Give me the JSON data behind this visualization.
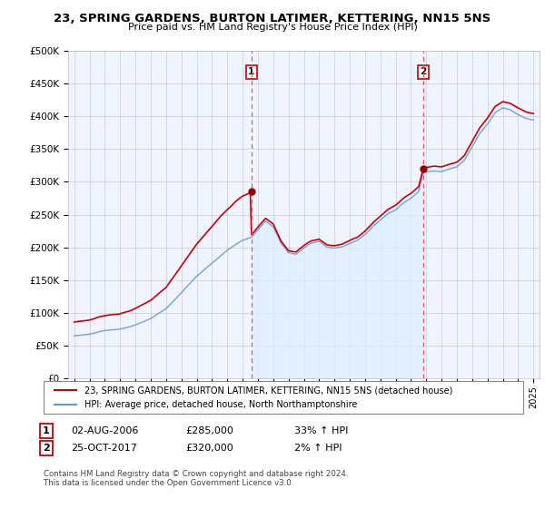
{
  "title": "23, SPRING GARDENS, BURTON LATIMER, KETTERING, NN15 5NS",
  "subtitle": "Price paid vs. HM Land Registry's House Price Index (HPI)",
  "legend_line1": "23, SPRING GARDENS, BURTON LATIMER, KETTERING, NN15 5NS (detached house)",
  "legend_line2": "HPI: Average price, detached house, North Northamptonshire",
  "annotation1_label": "1",
  "annotation1_date": "02-AUG-2006",
  "annotation1_price": "£285,000",
  "annotation1_hpi": "33% ↑ HPI",
  "annotation2_label": "2",
  "annotation2_date": "25-OCT-2017",
  "annotation2_price": "£320,000",
  "annotation2_hpi": "2% ↑ HPI",
  "footer": "Contains HM Land Registry data © Crown copyright and database right 2024.\nThis data is licensed under the Open Government Licence v3.0.",
  "sale_color": "#cc0000",
  "hpi_color": "#6699cc",
  "hpi_fill_color": "#ddeeff",
  "background_color": "#ffffff",
  "sale1_year": 2006.58,
  "sale1_value": 285000,
  "sale2_year": 2017.81,
  "sale2_value": 320000,
  "vline_color": "#dd4444",
  "ylim": [
    0,
    500000
  ],
  "yticks": [
    0,
    50000,
    100000,
    150000,
    200000,
    250000,
    300000,
    350000,
    400000,
    450000,
    500000
  ]
}
